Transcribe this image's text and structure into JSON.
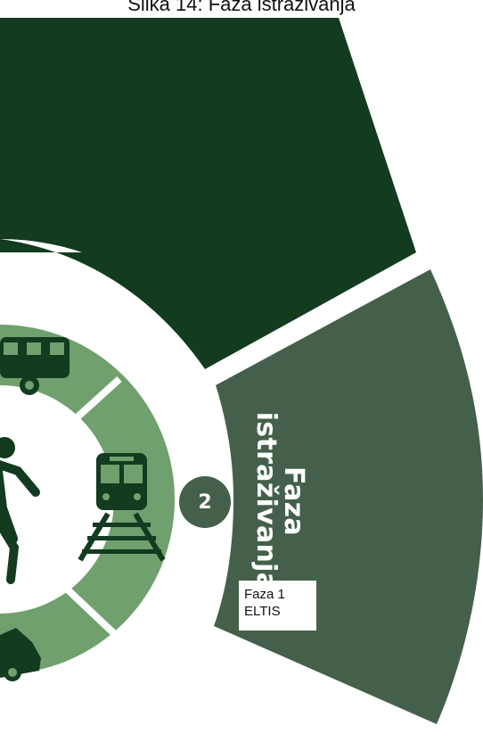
{
  "caption": "Slika 14: Faza istraživanja",
  "sector_title_line1": "Faza",
  "sector_title_line2": "istraživanja",
  "step_number": "2",
  "phase_note_line1": "Faza 1",
  "phase_note_line2": "ELTIS",
  "colors": {
    "dark_green": "#123b1f",
    "mid_green": "#44604b",
    "light_green": "#6fa06e",
    "white": "#ffffff"
  },
  "icons": [
    "bus-icon",
    "person-walking-icon",
    "train-icon",
    "car-icon"
  ]
}
